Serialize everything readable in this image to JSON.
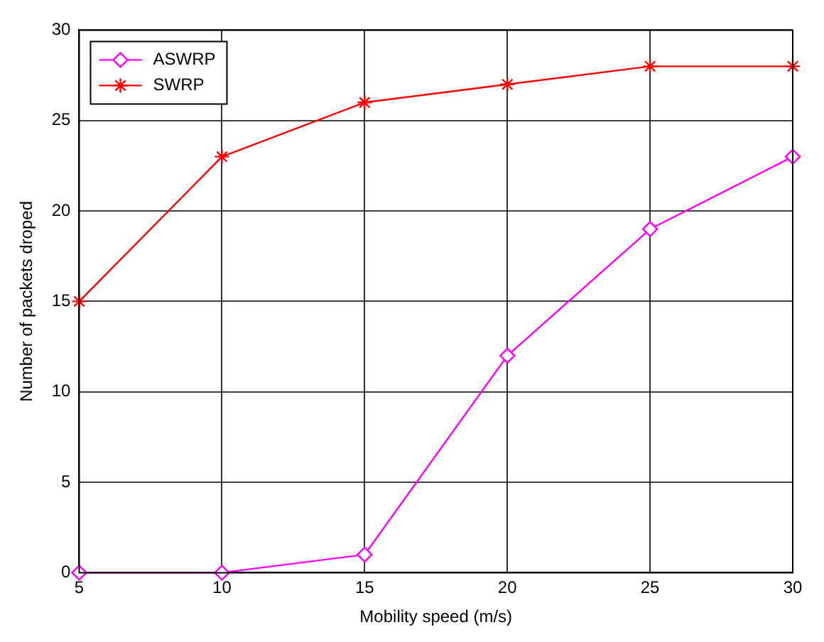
{
  "chart_data": {
    "type": "line",
    "xlabel": "Mobility speed (m/s)",
    "ylabel": "Number of packets droped",
    "x": [
      5,
      10,
      15,
      20,
      25,
      30
    ],
    "series": [
      {
        "name": "ASWRP",
        "color": "#ff00ff",
        "marker": "diamond",
        "values": [
          0,
          0,
          1,
          12,
          19,
          23
        ]
      },
      {
        "name": "SWRP",
        "color": "#ff0000",
        "marker": "cross",
        "values": [
          15,
          23,
          26,
          27,
          28,
          28
        ]
      }
    ],
    "xlim": [
      5,
      30
    ],
    "xticks": [
      5,
      10,
      15,
      20,
      25,
      30
    ],
    "ylim": [
      0,
      30
    ],
    "yticks": [
      0,
      5,
      10,
      15,
      20,
      25,
      30
    ],
    "grid": true,
    "legend": "top left",
    "line_style": "solid"
  }
}
